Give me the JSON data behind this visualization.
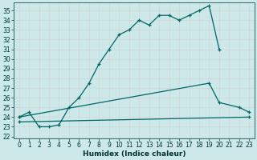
{
  "xlabel": "Humidex (Indice chaleur)",
  "bg_color": "#cce8e8",
  "grid_color": "#aacccc",
  "line_color": "#006666",
  "xlim": [
    -0.5,
    23.5
  ],
  "ylim": [
    21.8,
    35.8
  ],
  "xticks": [
    0,
    1,
    2,
    3,
    4,
    5,
    6,
    7,
    8,
    9,
    10,
    11,
    12,
    13,
    14,
    15,
    16,
    17,
    18,
    19,
    20,
    21,
    22,
    23
  ],
  "yticks": [
    22,
    23,
    24,
    25,
    26,
    27,
    28,
    29,
    30,
    31,
    32,
    33,
    34,
    35
  ],
  "curve1_x": [
    0,
    1,
    2,
    3,
    4,
    5,
    6,
    7,
    8,
    9,
    10,
    11,
    12,
    13,
    14,
    15,
    16,
    17,
    18,
    19,
    20
  ],
  "curve1_y": [
    24.0,
    24.5,
    23.0,
    23.0,
    23.2,
    25.0,
    26.0,
    27.5,
    29.5,
    31.0,
    32.5,
    33.0,
    34.0,
    33.5,
    34.5,
    34.5,
    34.0,
    34.5,
    35.0,
    35.5,
    31.0
  ],
  "curve2_x": [
    0,
    19,
    20,
    22,
    23
  ],
  "curve2_y": [
    24.0,
    27.5,
    25.5,
    25.0,
    24.5
  ],
  "curve3_x": [
    0,
    23
  ],
  "curve3_y": [
    23.5,
    24.0
  ],
  "tick_fontsize": 5.5,
  "xlabel_fontsize": 6.5
}
